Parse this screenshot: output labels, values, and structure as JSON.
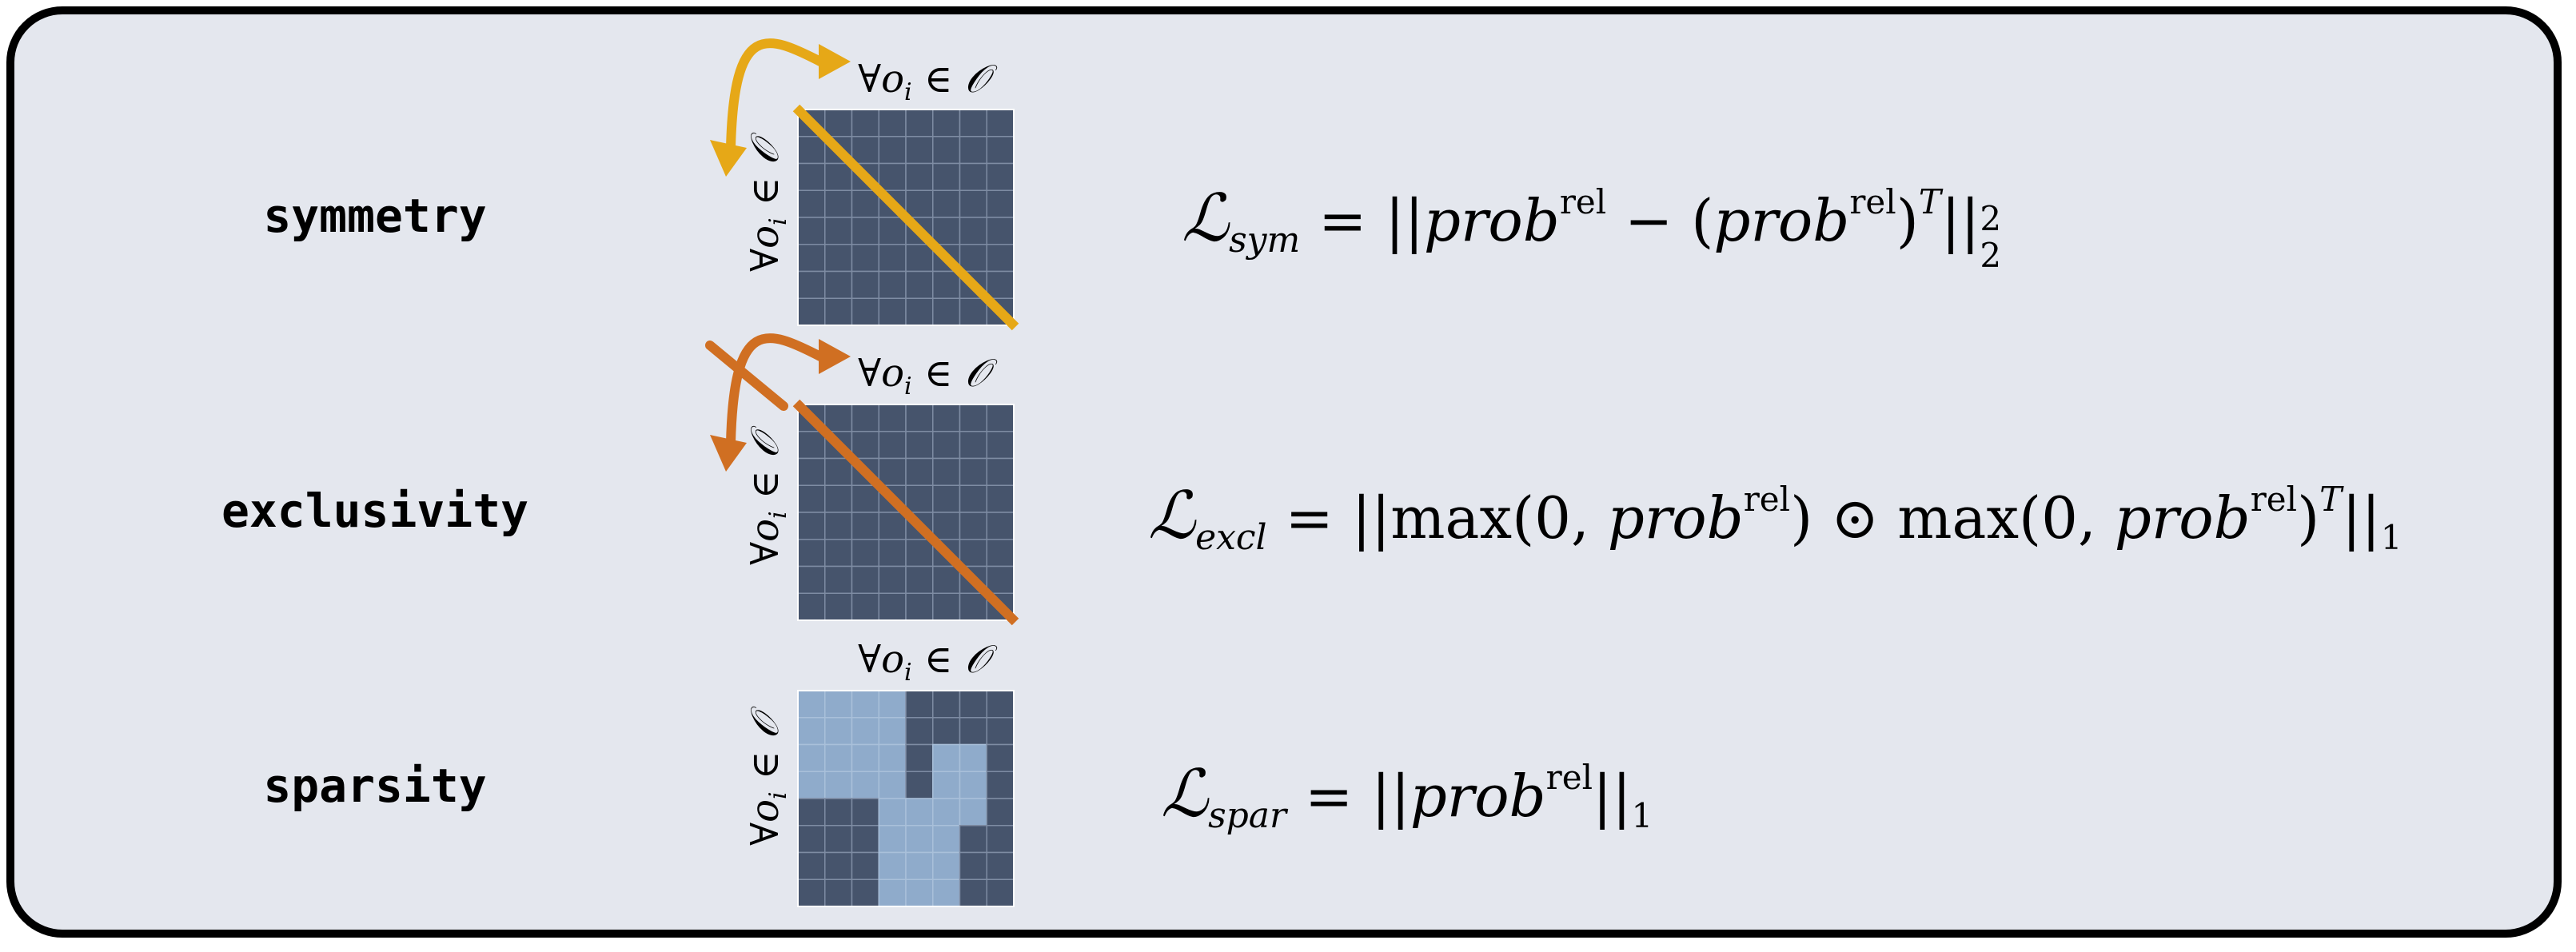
{
  "colors": {
    "cell_dark": "#46546c",
    "cell_light": "#8fabcb",
    "symmetry_accent": "#e6a817",
    "exclusivity_accent": "#d06f22",
    "panel_bg": "#e4e7ee"
  },
  "axis_label": {
    "forall": "∀",
    "var": "o",
    "sub": "i",
    "in": "∈",
    "set": "𝒪"
  },
  "rows": [
    {
      "label": "symmetry",
      "formula": {
        "L": "ℒ",
        "sub": "sym",
        "body1": " = ||",
        "prob": "prob",
        "rel": "rel",
        "body2": " − (",
        "body3": ")",
        "T": "T",
        "body4": "||",
        "sup2": "2",
        "sub2": "2"
      }
    },
    {
      "label": "exclusivity",
      "formula": {
        "L": "ℒ",
        "sub": "excl",
        "body1": " = ||max(0, ",
        "prob": "prob",
        "rel": "rel",
        "body2": ") ⊙ max(0, ",
        "body3": ")",
        "T": "T",
        "body4": "||",
        "sub2": "1"
      }
    },
    {
      "label": "sparsity",
      "formula": {
        "L": "ℒ",
        "sub": "spar",
        "body1": " = ||",
        "prob": "prob",
        "rel": "rel",
        "body4": "||",
        "sub2": "1"
      },
      "light_cells": [
        [
          1,
          1,
          1,
          1,
          0,
          0,
          0,
          0
        ],
        [
          1,
          1,
          1,
          1,
          0,
          0,
          0,
          0
        ],
        [
          1,
          1,
          1,
          1,
          0,
          1,
          1,
          0
        ],
        [
          1,
          1,
          1,
          1,
          0,
          1,
          1,
          0
        ],
        [
          0,
          0,
          0,
          1,
          1,
          1,
          1,
          0
        ],
        [
          0,
          0,
          0,
          1,
          1,
          1,
          0,
          0
        ],
        [
          0,
          0,
          0,
          1,
          1,
          1,
          0,
          0
        ],
        [
          0,
          0,
          0,
          1,
          1,
          1,
          0,
          0
        ]
      ]
    }
  ]
}
